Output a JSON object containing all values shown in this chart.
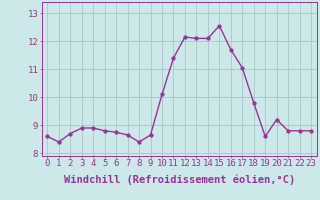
{
  "x": [
    0,
    1,
    2,
    3,
    4,
    5,
    6,
    7,
    8,
    9,
    10,
    11,
    12,
    13,
    14,
    15,
    16,
    17,
    18,
    19,
    20,
    21,
    22,
    23
  ],
  "y": [
    8.6,
    8.4,
    8.7,
    8.9,
    8.9,
    8.8,
    8.75,
    8.65,
    8.4,
    8.65,
    10.1,
    11.4,
    12.15,
    12.1,
    12.1,
    12.55,
    11.7,
    11.05,
    9.8,
    8.6,
    9.2,
    8.8,
    8.8,
    8.8
  ],
  "line_color": "#993399",
  "marker_color": "#993399",
  "bg_color": "#cce8e8",
  "grid_color": "#aacccc",
  "axis_color": "#993399",
  "tick_color": "#993399",
  "xlabel": "Windchill (Refroidissement éolien,°C)",
  "xlabel_color": "#993399",
  "ylim": [
    7.9,
    13.4
  ],
  "yticks": [
    8,
    9,
    10,
    11,
    12,
    13
  ],
  "xticks": [
    0,
    1,
    2,
    3,
    4,
    5,
    6,
    7,
    8,
    9,
    10,
    11,
    12,
    13,
    14,
    15,
    16,
    17,
    18,
    19,
    20,
    21,
    22,
    23
  ],
  "xtick_labels": [
    "0",
    "1",
    "2",
    "3",
    "4",
    "5",
    "6",
    "7",
    "8",
    "9",
    "10",
    "11",
    "12",
    "13",
    "14",
    "15",
    "16",
    "17",
    "18",
    "19",
    "20",
    "21",
    "22",
    "23"
  ],
  "fontsize_xlabel": 7.5,
  "fontsize_tick": 6.5,
  "linewidth": 1.0,
  "markersize": 2.5
}
